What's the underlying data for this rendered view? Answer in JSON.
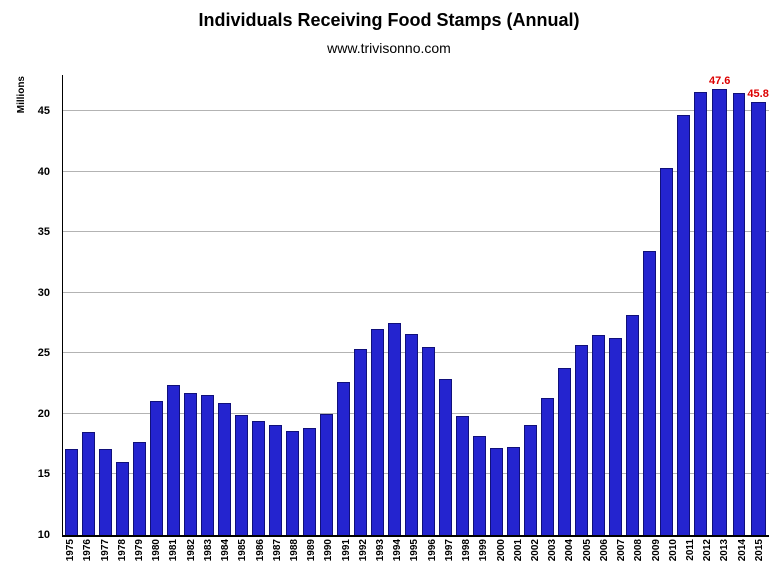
{
  "chart_data": {
    "type": "bar",
    "title": "Individuals Receiving Food Stamps (Annual)",
    "subtitle": "www.trivisonno.com",
    "xlabel": "",
    "ylabel": "Millions",
    "ylim": [
      10,
      48
    ],
    "yticks": [
      10,
      15,
      20,
      25,
      30,
      35,
      40,
      45
    ],
    "grid": true,
    "legend": false,
    "bar_color": "#2424cf",
    "bar_border_color": "#10107a",
    "annotation_color": "#dd0000",
    "gridline_color": "#b3b3b3",
    "categories": [
      "1975",
      "1976",
      "1977",
      "1978",
      "1979",
      "1980",
      "1981",
      "1982",
      "1983",
      "1984",
      "1985",
      "1986",
      "1987",
      "1988",
      "1989",
      "1990",
      "1991",
      "1992",
      "1993",
      "1994",
      "1995",
      "1996",
      "1997",
      "1998",
      "1999",
      "2000",
      "2001",
      "2002",
      "2003",
      "2004",
      "2005",
      "2006",
      "2007",
      "2008",
      "2009",
      "2010",
      "2011",
      "2012",
      "2013",
      "2014",
      "2015"
    ],
    "values": [
      17.1,
      18.5,
      17.1,
      16.0,
      17.7,
      21.1,
      22.4,
      21.7,
      21.6,
      20.9,
      19.9,
      19.4,
      19.1,
      18.6,
      18.8,
      20.0,
      22.6,
      25.4,
      27.0,
      27.5,
      26.6,
      25.5,
      22.9,
      19.8,
      18.2,
      17.2,
      17.3,
      19.1,
      21.3,
      23.8,
      25.7,
      26.5,
      26.3,
      28.2,
      33.5,
      40.3,
      44.7,
      46.6,
      47.6,
      46.5,
      45.8
    ],
    "annotations": [
      {
        "category": "2013",
        "text": "47.6"
      },
      {
        "category": "2015",
        "text": "45.8"
      }
    ]
  }
}
